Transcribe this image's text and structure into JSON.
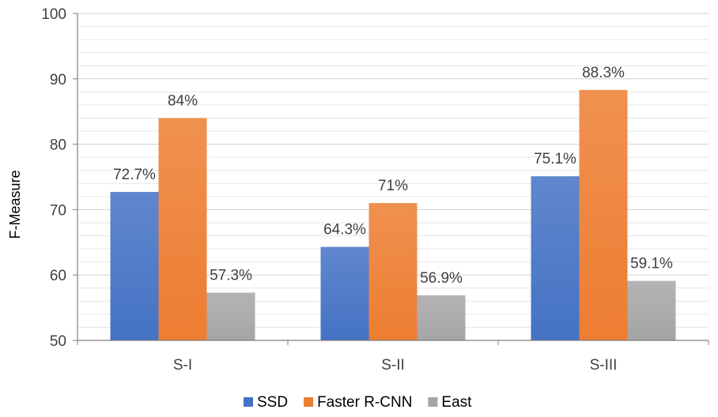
{
  "chart_data": {
    "type": "bar",
    "title": "",
    "xlabel": "",
    "ylabel": "F-Measure",
    "ylim": [
      50,
      100
    ],
    "yticks": [
      "50",
      "60",
      "70",
      "80",
      "90",
      "100"
    ],
    "minor_grid_step": 2,
    "grid": true,
    "legend_position": "bottom",
    "categories": [
      "S-I",
      "S-II",
      "S-III"
    ],
    "series": [
      {
        "name": "SSD",
        "color": "#4472C4",
        "values": [
          72.7,
          64.3,
          75.1
        ],
        "labels": [
          "72.7%",
          "64.3%",
          "75.1%"
        ]
      },
      {
        "name": "Faster R-CNN",
        "color": "#ED7D31",
        "values": [
          84,
          71,
          88.3
        ],
        "labels": [
          "84%",
          "71%",
          "88.3%"
        ]
      },
      {
        "name": "East",
        "color": "#A5A5A5",
        "values": [
          57.3,
          56.9,
          59.1
        ],
        "labels": [
          "57.3%",
          "56.9%",
          "59.1%"
        ]
      }
    ]
  }
}
